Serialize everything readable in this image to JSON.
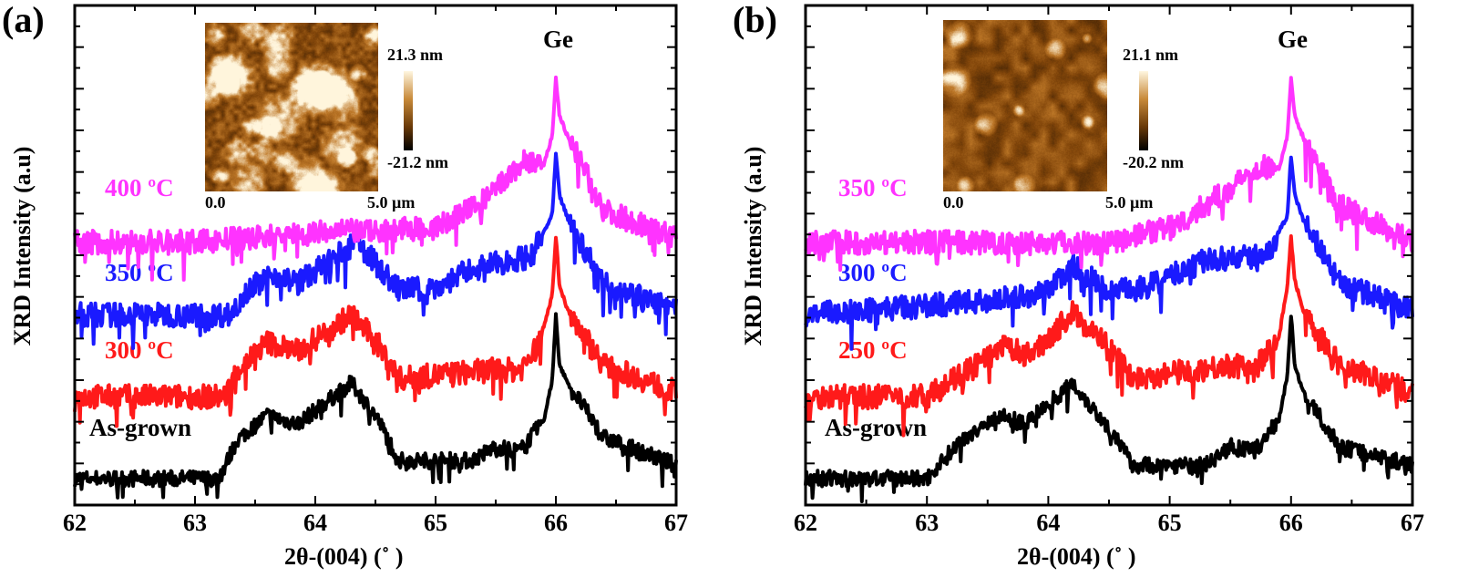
{
  "chart_data": [
    {
      "type": "line",
      "panel_label": "(a)",
      "xlabel": "2θ-(004) (˚ )",
      "ylabel": "XRD Intensity (a.u)",
      "xlim": [
        62,
        67
      ],
      "ylim": [
        0,
        100
      ],
      "xticks": [
        62,
        63,
        64,
        65,
        66,
        67
      ],
      "annotation": "Ge",
      "inset": {
        "scale_max": "21.3 nm",
        "scale_min": "-21.2 nm",
        "axis_start": "0.0",
        "axis_end": "5.0 µm"
      },
      "series": [
        {
          "name": "As-grown",
          "color": "#000000",
          "x": [
            62,
            63.2,
            63.35,
            63.6,
            63.85,
            64.3,
            64.5,
            64.7,
            65.3,
            65.5,
            65.7,
            65.9,
            65.97,
            66.0,
            66.03,
            66.1,
            66.4,
            67
          ],
          "y": [
            5.3,
            5.3,
            13,
            18,
            16.2,
            24.4,
            18,
            8.9,
            8.9,
            11.7,
            10.7,
            17,
            25,
            38.1,
            28,
            24.4,
            13.5,
            8
          ]
        },
        {
          "name": "300 ºC",
          "color": "#ff1a1a",
          "x": [
            62,
            63.25,
            63.35,
            63.6,
            63.85,
            64.3,
            64.5,
            64.7,
            65.5,
            65.7,
            65.85,
            65.97,
            66.0,
            66.03,
            66.1,
            66.4,
            67
          ],
          "y": [
            21.7,
            21.7,
            27,
            32.6,
            30.8,
            38.1,
            33,
            25.3,
            27.1,
            27,
            31.7,
            42,
            53.9,
            44,
            39,
            28,
            22.6
          ]
        },
        {
          "name": "350 ºC",
          "color": "#1a1aff",
          "x": [
            62,
            63.3,
            63.4,
            63.65,
            63.85,
            64.35,
            64.55,
            64.7,
            65.0,
            65.3,
            65.8,
            65.97,
            66.0,
            66.03,
            66.1,
            66.4,
            67
          ],
          "y": [
            38.1,
            38.1,
            42.5,
            46.3,
            44.4,
            52.6,
            47,
            43,
            43.5,
            47.2,
            49.9,
            58,
            70.3,
            62,
            57.2,
            44.4,
            39
          ]
        },
        {
          "name": "400 ºC",
          "color": "#ff33ff",
          "x": [
            62,
            63,
            64,
            65,
            65.4,
            65.75,
            65.9,
            65.97,
            66.0,
            66.03,
            66.1,
            66.4,
            67
          ],
          "y": [
            52.6,
            52.6,
            54.5,
            55.4,
            60.8,
            69,
            68,
            74,
            85.4,
            78,
            73.6,
            59,
            53.5
          ]
        }
      ]
    },
    {
      "type": "line",
      "panel_label": "(b)",
      "xlabel": "2θ-(004) (˚ )",
      "ylabel": "XRD Intensity (a.u)",
      "xlim": [
        62,
        67
      ],
      "ylim": [
        0,
        100
      ],
      "xticks": [
        62,
        63,
        64,
        65,
        66,
        67
      ],
      "annotation": "Ge",
      "inset": {
        "scale_max": "21.1 nm",
        "scale_min": "-20.2 nm",
        "axis_start": "0.0",
        "axis_end": "5.0 µm"
      },
      "series": [
        {
          "name": "As-grown",
          "color": "#000000",
          "x": [
            62,
            63,
            63.3,
            63.6,
            63.8,
            64.2,
            64.5,
            64.7,
            65.3,
            65.5,
            65.7,
            65.9,
            65.97,
            66.0,
            66.03,
            66.1,
            66.4,
            67
          ],
          "y": [
            5.3,
            5.3,
            13.5,
            18,
            16.2,
            24.4,
            15.3,
            8,
            8,
            11.7,
            10.7,
            17.1,
            26,
            38.1,
            28,
            22.6,
            11.7,
            8
          ]
        },
        {
          "name": "250 ºC",
          "color": "#ff1a1a",
          "x": [
            62,
            63,
            63.3,
            63.65,
            63.85,
            64.2,
            64.5,
            64.7,
            65.5,
            65.7,
            65.9,
            65.97,
            66.0,
            66.03,
            66.1,
            66.4,
            67
          ],
          "y": [
            21.7,
            21.7,
            26.2,
            31.7,
            29.9,
            38.4,
            31.7,
            25.3,
            28,
            27.1,
            33.5,
            44,
            53.6,
            45,
            39,
            28,
            22.6
          ]
        },
        {
          "name": "300 ºC",
          "color": "#1a1aff",
          "x": [
            62,
            63.5,
            64.0,
            64.2,
            64.5,
            64.8,
            65.3,
            65.8,
            65.97,
            66.0,
            66.03,
            66.1,
            66.4,
            67
          ],
          "y": [
            38.1,
            40.8,
            42.6,
            48.1,
            42.6,
            43.5,
            49,
            49.9,
            58,
            69.9,
            62,
            57.2,
            44.4,
            39
          ]
        },
        {
          "name": "350 ºC",
          "color": "#ff33ff",
          "x": [
            62,
            64.5,
            65,
            65.4,
            65.75,
            65.9,
            65.97,
            66.0,
            66.03,
            66.1,
            66.4,
            67
          ],
          "y": [
            52.6,
            52.6,
            55.4,
            61.7,
            68.1,
            67.2,
            74,
            85.4,
            78,
            73.6,
            59.9,
            52.6
          ]
        }
      ]
    }
  ]
}
